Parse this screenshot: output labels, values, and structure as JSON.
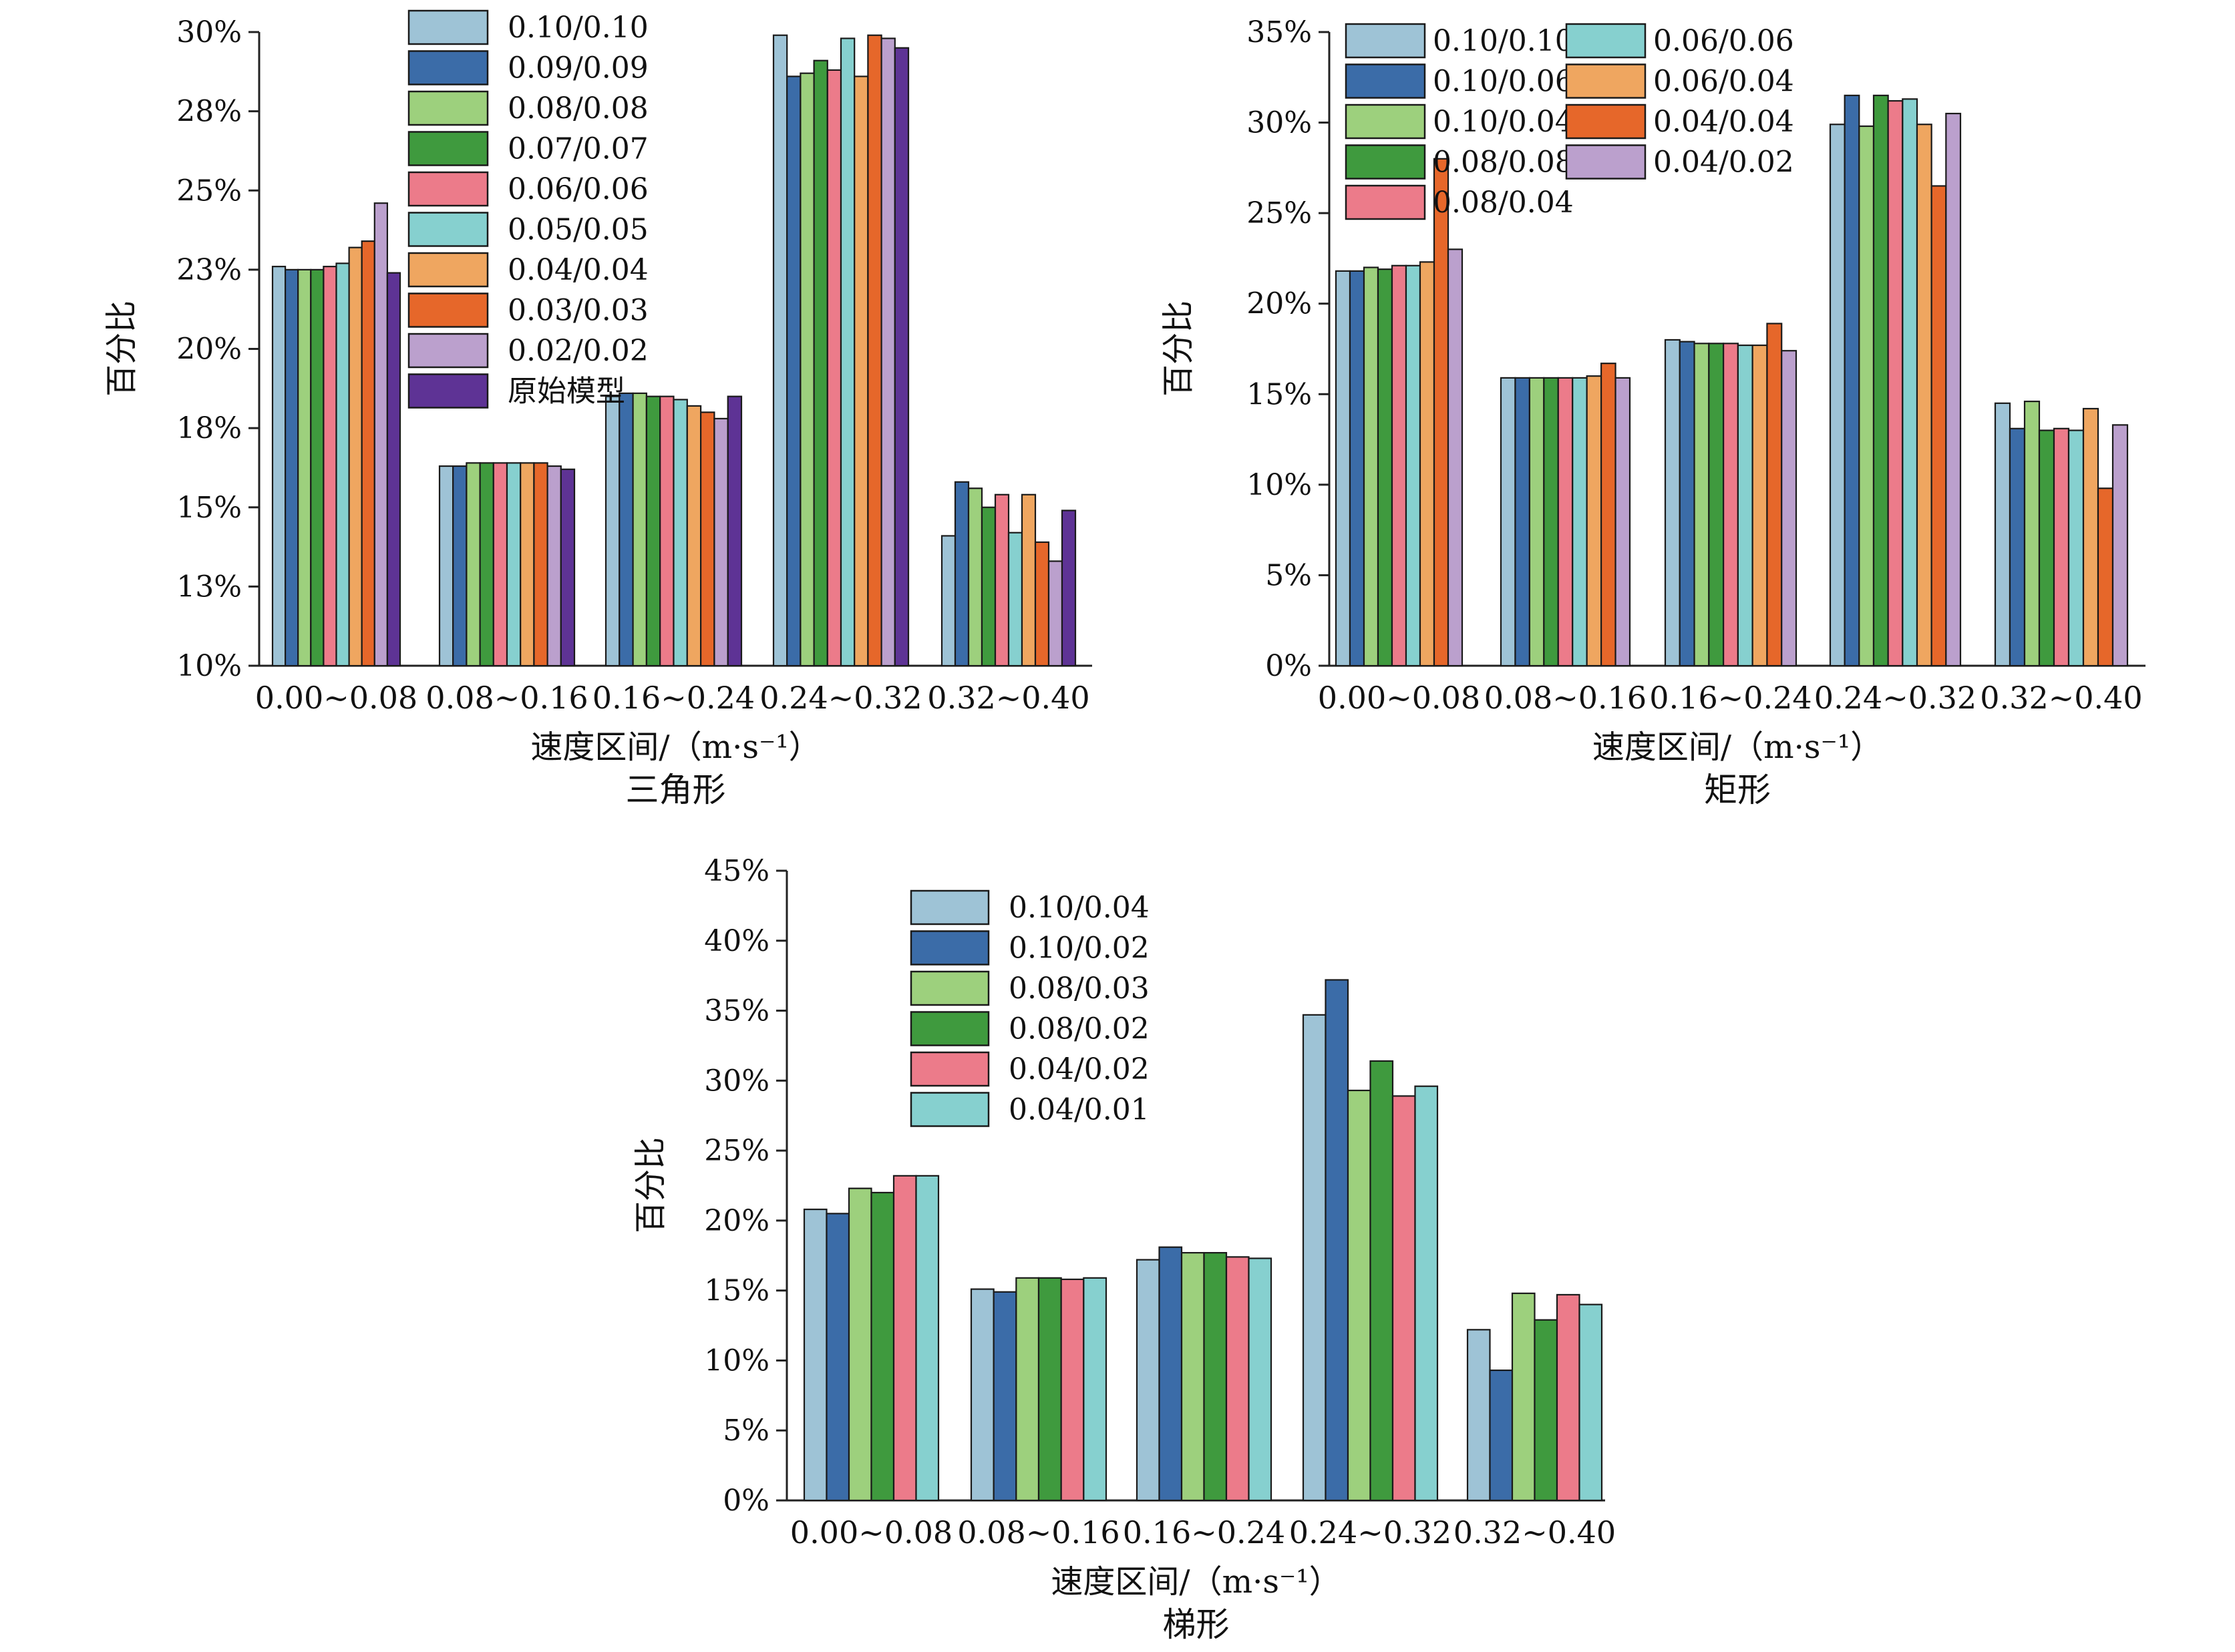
{
  "chart_data": [
    {
      "type": "bar",
      "caption": "三角形",
      "xlabel": "速度区间/（m·s⁻¹）",
      "ylabel": "百分比",
      "categories": [
        "0.00~0.08",
        "0.08~0.16",
        "0.16~0.24",
        "0.24~0.32",
        "0.32~0.40"
      ],
      "ylim": [
        10,
        30
      ],
      "yticks": [
        10,
        12.5,
        15,
        17.5,
        20,
        22.5,
        25,
        27.5,
        30
      ],
      "ytick_labels": [
        "10%",
        "13%",
        "15%",
        "18%",
        "20%",
        "23%",
        "25%",
        "28%",
        "30%"
      ],
      "legend_position": "top-center",
      "legend_columns": 1,
      "series": [
        {
          "name": "0.10/0.10",
          "color": "#9ec3d6",
          "values": [
            22.6,
            16.3,
            18.5,
            29.9,
            14.1
          ]
        },
        {
          "name": "0.09/0.09",
          "color": "#3b6ca8",
          "values": [
            22.5,
            16.3,
            18.6,
            28.6,
            15.8
          ]
        },
        {
          "name": "0.08/0.08",
          "color": "#9dd07d",
          "values": [
            22.5,
            16.4,
            18.6,
            28.7,
            15.6
          ]
        },
        {
          "name": "0.07/0.07",
          "color": "#3f9a3e",
          "values": [
            22.5,
            16.4,
            18.5,
            29.1,
            15.0
          ]
        },
        {
          "name": "0.06/0.06",
          "color": "#ec7b8a",
          "values": [
            22.6,
            16.4,
            18.5,
            28.8,
            15.4
          ]
        },
        {
          "name": "0.05/0.05",
          "color": "#86d0cf",
          "values": [
            22.7,
            16.4,
            18.4,
            29.8,
            14.2
          ]
        },
        {
          "name": "0.04/0.04",
          "color": "#efa660",
          "values": [
            23.2,
            16.4,
            18.2,
            28.6,
            15.4
          ]
        },
        {
          "name": "0.03/0.03",
          "color": "#e6672a",
          "values": [
            23.4,
            16.4,
            18.0,
            29.9,
            13.9
          ]
        },
        {
          "name": "0.02/0.02",
          "color": "#bba0cd",
          "values": [
            24.6,
            16.3,
            17.8,
            29.8,
            13.3
          ]
        },
        {
          "name": "原始模型",
          "color": "#5e3395",
          "values": [
            22.4,
            16.2,
            18.5,
            29.5,
            14.9
          ]
        }
      ]
    },
    {
      "type": "bar",
      "caption": "矩形",
      "xlabel": "速度区间/（m·s⁻¹）",
      "ylabel": "百分比",
      "categories": [
        "0.00~0.08",
        "0.08~0.16",
        "0.16~0.24",
        "0.24~0.32",
        "0.32~0.40"
      ],
      "ylim": [
        0,
        35
      ],
      "yticks": [
        0,
        5,
        10,
        15,
        20,
        25,
        30,
        35
      ],
      "ytick_labels": [
        "0%",
        "5%",
        "10%",
        "15%",
        "20%",
        "25%",
        "30%",
        "35%"
      ],
      "legend_position": "top-center",
      "legend_columns": 2,
      "series": [
        {
          "name": "0.10/0.10",
          "color": "#9ec3d6",
          "values": [
            21.8,
            15.9,
            18.0,
            29.9,
            14.5
          ]
        },
        {
          "name": "0.10/0.06",
          "color": "#3b6ca8",
          "values": [
            21.8,
            15.9,
            17.9,
            31.5,
            13.1
          ]
        },
        {
          "name": "0.10/0.04",
          "color": "#9dd07d",
          "values": [
            22.0,
            15.9,
            17.8,
            29.8,
            14.6
          ]
        },
        {
          "name": "0.08/0.08",
          "color": "#3f9a3e",
          "values": [
            21.9,
            15.9,
            17.8,
            31.5,
            13.0
          ]
        },
        {
          "name": "0.08/0.04",
          "color": "#ec7b8a",
          "values": [
            22.1,
            15.9,
            17.8,
            31.2,
            13.1
          ]
        },
        {
          "name": "0.06/0.06",
          "color": "#86d0cf",
          "values": [
            22.1,
            15.9,
            17.7,
            31.3,
            13.0
          ]
        },
        {
          "name": "0.06/0.04",
          "color": "#efa660",
          "values": [
            22.3,
            16.0,
            17.7,
            29.9,
            14.2
          ]
        },
        {
          "name": "0.04/0.04",
          "color": "#e6672a",
          "values": [
            28.0,
            16.7,
            18.9,
            26.5,
            9.8
          ]
        },
        {
          "name": "0.04/0.02",
          "color": "#bba0cd",
          "values": [
            23.0,
            15.9,
            17.4,
            30.5,
            13.3
          ]
        }
      ]
    },
    {
      "type": "bar",
      "caption": "梯形",
      "xlabel": "速度区间/（m·s⁻¹）",
      "ylabel": "百分比",
      "categories": [
        "0.00~0.08",
        "0.08~0.16",
        "0.16~0.24",
        "0.24~0.32",
        "0.32~0.40"
      ],
      "ylim": [
        0,
        45
      ],
      "yticks": [
        0,
        5,
        10,
        15,
        20,
        25,
        30,
        35,
        40,
        45
      ],
      "ytick_labels": [
        "0%",
        "5%",
        "10%",
        "15%",
        "20%",
        "25%",
        "30%",
        "35%",
        "40%",
        "45%"
      ],
      "legend_position": "top-left",
      "legend_columns": 1,
      "series": [
        {
          "name": "0.10/0.04",
          "color": "#9ec3d6",
          "values": [
            20.8,
            15.1,
            17.2,
            34.7,
            12.2
          ]
        },
        {
          "name": "0.10/0.02",
          "color": "#3b6ca8",
          "values": [
            20.5,
            14.9,
            18.1,
            37.2,
            9.3
          ]
        },
        {
          "name": "0.08/0.03",
          "color": "#9dd07d",
          "values": [
            22.3,
            15.9,
            17.7,
            29.3,
            14.8
          ]
        },
        {
          "name": "0.08/0.02",
          "color": "#3f9a3e",
          "values": [
            22.0,
            15.9,
            17.7,
            31.4,
            12.9
          ]
        },
        {
          "name": "0.04/0.02",
          "color": "#ec7b8a",
          "values": [
            23.2,
            15.8,
            17.4,
            28.9,
            14.7
          ]
        },
        {
          "name": "0.04/0.01",
          "color": "#86d0cf",
          "values": [
            23.2,
            15.9,
            17.3,
            29.6,
            14.0
          ]
        }
      ]
    }
  ]
}
